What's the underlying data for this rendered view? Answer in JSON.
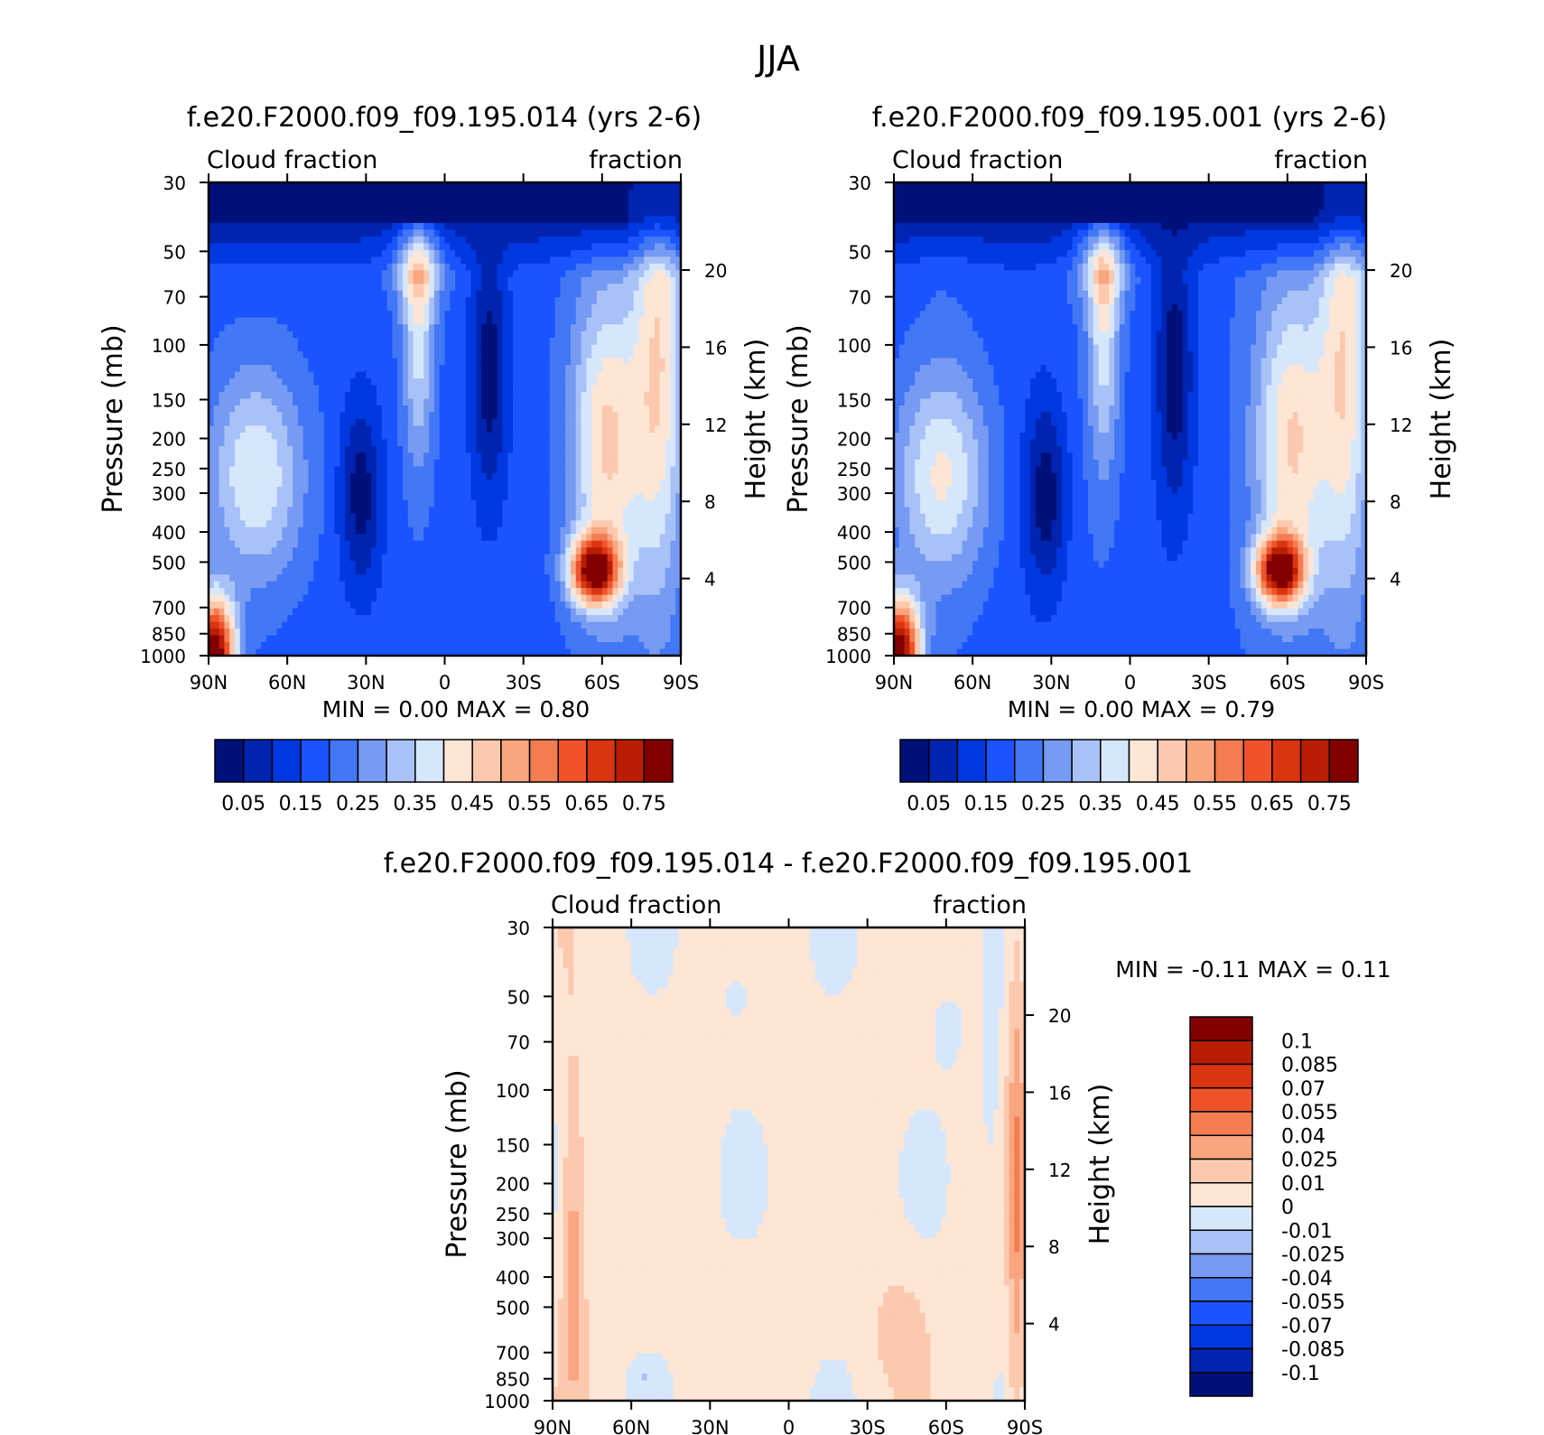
{
  "title": "JJA",
  "chart_data": [
    {
      "type": "heatmap",
      "title": "f.e20.F2000.f09_f09.195.014 (yrs 2-6)",
      "left_string": "Cloud fraction",
      "right_string": "fraction",
      "ylabel": "Pressure (mb)",
      "y2label": "Height (km)",
      "x_ticks": [
        "90N",
        "60N",
        "30N",
        "0",
        "30S",
        "60S",
        "90S"
      ],
      "y_ticks": [
        "30",
        "50",
        "70",
        "100",
        "150",
        "200",
        "250",
        "300",
        "400",
        "500",
        "700",
        "850",
        "1000"
      ],
      "y2_ticks": [
        "20",
        "16",
        "12",
        "8",
        "4"
      ],
      "y_scale": "log",
      "ylim": [
        1000,
        30
      ],
      "stats_text": "MIN =     0.00   MAX =     0.80",
      "min": 0.0,
      "max": 0.8,
      "colorbar": {
        "orientation": "horizontal",
        "labels": [
          "0.05",
          "0.15",
          "0.25",
          "0.35",
          "0.45",
          "0.55",
          "0.65",
          "0.75"
        ],
        "colors": [
          "#00107a",
          "#0024b0",
          "#0038e0",
          "#1a54ff",
          "#4277f5",
          "#779bf2",
          "#a8c2f8",
          "#d7e7fb",
          "#fde6d6",
          "#fcc9ae",
          "#f9a57f",
          "#f47c51",
          "#f0532c",
          "#da3510",
          "#b91e04",
          "#830000"
        ]
      }
    },
    {
      "type": "heatmap",
      "title": "f.e20.F2000.f09_f09.195.001 (yrs 2-6)",
      "left_string": "Cloud fraction",
      "right_string": "fraction",
      "ylabel": "Pressure (mb)",
      "y2label": "Height (km)",
      "x_ticks": [
        "90N",
        "60N",
        "30N",
        "0",
        "30S",
        "60S",
        "90S"
      ],
      "y_ticks": [
        "30",
        "50",
        "70",
        "100",
        "150",
        "200",
        "250",
        "300",
        "400",
        "500",
        "700",
        "850",
        "1000"
      ],
      "y2_ticks": [
        "20",
        "16",
        "12",
        "8",
        "4"
      ],
      "y_scale": "log",
      "ylim": [
        1000,
        30
      ],
      "stats_text": "MIN =     0.00   MAX =     0.79",
      "min": 0.0,
      "max": 0.79,
      "colorbar": {
        "orientation": "horizontal",
        "labels": [
          "0.05",
          "0.15",
          "0.25",
          "0.35",
          "0.45",
          "0.55",
          "0.65",
          "0.75"
        ],
        "colors": [
          "#00107a",
          "#0024b0",
          "#0038e0",
          "#1a54ff",
          "#4277f5",
          "#779bf2",
          "#a8c2f8",
          "#d7e7fb",
          "#fde6d6",
          "#fcc9ae",
          "#f9a57f",
          "#f47c51",
          "#f0532c",
          "#da3510",
          "#b91e04",
          "#830000"
        ]
      }
    },
    {
      "type": "heatmap",
      "title": "f.e20.F2000.f09_f09.195.014 - f.e20.F2000.f09_f09.195.001",
      "left_string": "Cloud fraction",
      "right_string": "fraction",
      "ylabel": "Pressure (mb)",
      "y2label": "Height (km)",
      "x_ticks": [
        "90N",
        "60N",
        "30N",
        "0",
        "30S",
        "60S",
        "90S"
      ],
      "y_ticks": [
        "30",
        "50",
        "70",
        "100",
        "150",
        "200",
        "250",
        "300",
        "400",
        "500",
        "700",
        "850",
        "1000"
      ],
      "y2_ticks": [
        "20",
        "16",
        "12",
        "8",
        "4"
      ],
      "y_scale": "log",
      "ylim": [
        1000,
        30
      ],
      "stats_text": "MIN =   -0.11   MAX =     0.11",
      "min": -0.11,
      "max": 0.11,
      "colorbar": {
        "orientation": "vertical",
        "labels": [
          "0.1",
          "0.085",
          "0.07",
          "0.055",
          "0.04",
          "0.025",
          "0.01",
          "0",
          "-0.01",
          "-0.025",
          "-0.04",
          "-0.055",
          "-0.07",
          "-0.085",
          "-0.1"
        ],
        "colors": [
          "#830000",
          "#b91e04",
          "#da3510",
          "#f0532c",
          "#f47c51",
          "#f9a57f",
          "#fcc9ae",
          "#fde6d6",
          "#d7e7fb",
          "#a8c2f8",
          "#779bf2",
          "#4277f5",
          "#1a54ff",
          "#0038e0",
          "#0024b0",
          "#00107a"
        ]
      }
    }
  ]
}
